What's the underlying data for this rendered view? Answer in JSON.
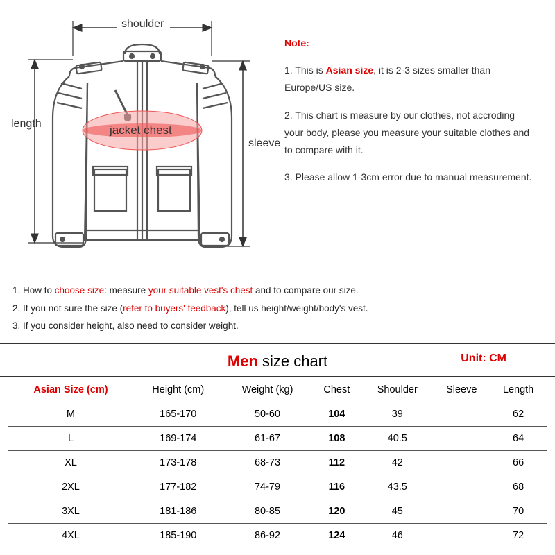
{
  "diagram": {
    "labels": {
      "shoulder": "shoulder",
      "length": "length",
      "sleeve": "sleeve",
      "chest": "jacket chest"
    },
    "colors": {
      "chest_fill": "#f07a7a",
      "chest_fill_light": "#f8c0c0",
      "outline": "#555"
    }
  },
  "notes": {
    "title": "Note:",
    "n1_a": "1. This is ",
    "n1_b": "Asian size",
    "n1_c": ", it is 2-3 sizes smaller than Europe/US size.",
    "n2": "2. This chart is measure by our clothes, not accroding your body, please you measure your suitable clothes and to compare with it.",
    "n3": "3. Please allow 1-3cm error due to manual measurement."
  },
  "tips": {
    "t1_a": "1. How to ",
    "t1_b": "choose size",
    "t1_c": ": measure ",
    "t1_d": "your suitable vest's chest",
    "t1_e": " and to compare our size.",
    "t2_a": "2. If you not sure the size (",
    "t2_b": "refer to buyers' feedback",
    "t2_c": "), tell us height/weight/body's vest.",
    "t3": "3. If you consider height, also need to consider weight."
  },
  "chart": {
    "title_a": "Men",
    "title_b": " size chart",
    "unit": "Unit: CM",
    "columns": [
      "Asian Size (cm)",
      "Height (cm)",
      "Weight (kg)",
      "Chest",
      "Shoulder",
      "Sleeve",
      "Length"
    ],
    "rows": [
      [
        "M",
        "165-170",
        "50-60",
        "104",
        "39",
        "",
        "62"
      ],
      [
        "L",
        "169-174",
        "61-67",
        "108",
        "40.5",
        "",
        "64"
      ],
      [
        "XL",
        "173-178",
        "68-73",
        "112",
        "42",
        "",
        "66"
      ],
      [
        "2XL",
        "177-182",
        "74-79",
        "116",
        "43.5",
        "",
        "68"
      ],
      [
        "3XL",
        "181-186",
        "80-85",
        "120",
        "45",
        "",
        "70"
      ],
      [
        "4XL",
        "185-190",
        "86-92",
        "124",
        "46",
        "",
        "72"
      ]
    ]
  }
}
